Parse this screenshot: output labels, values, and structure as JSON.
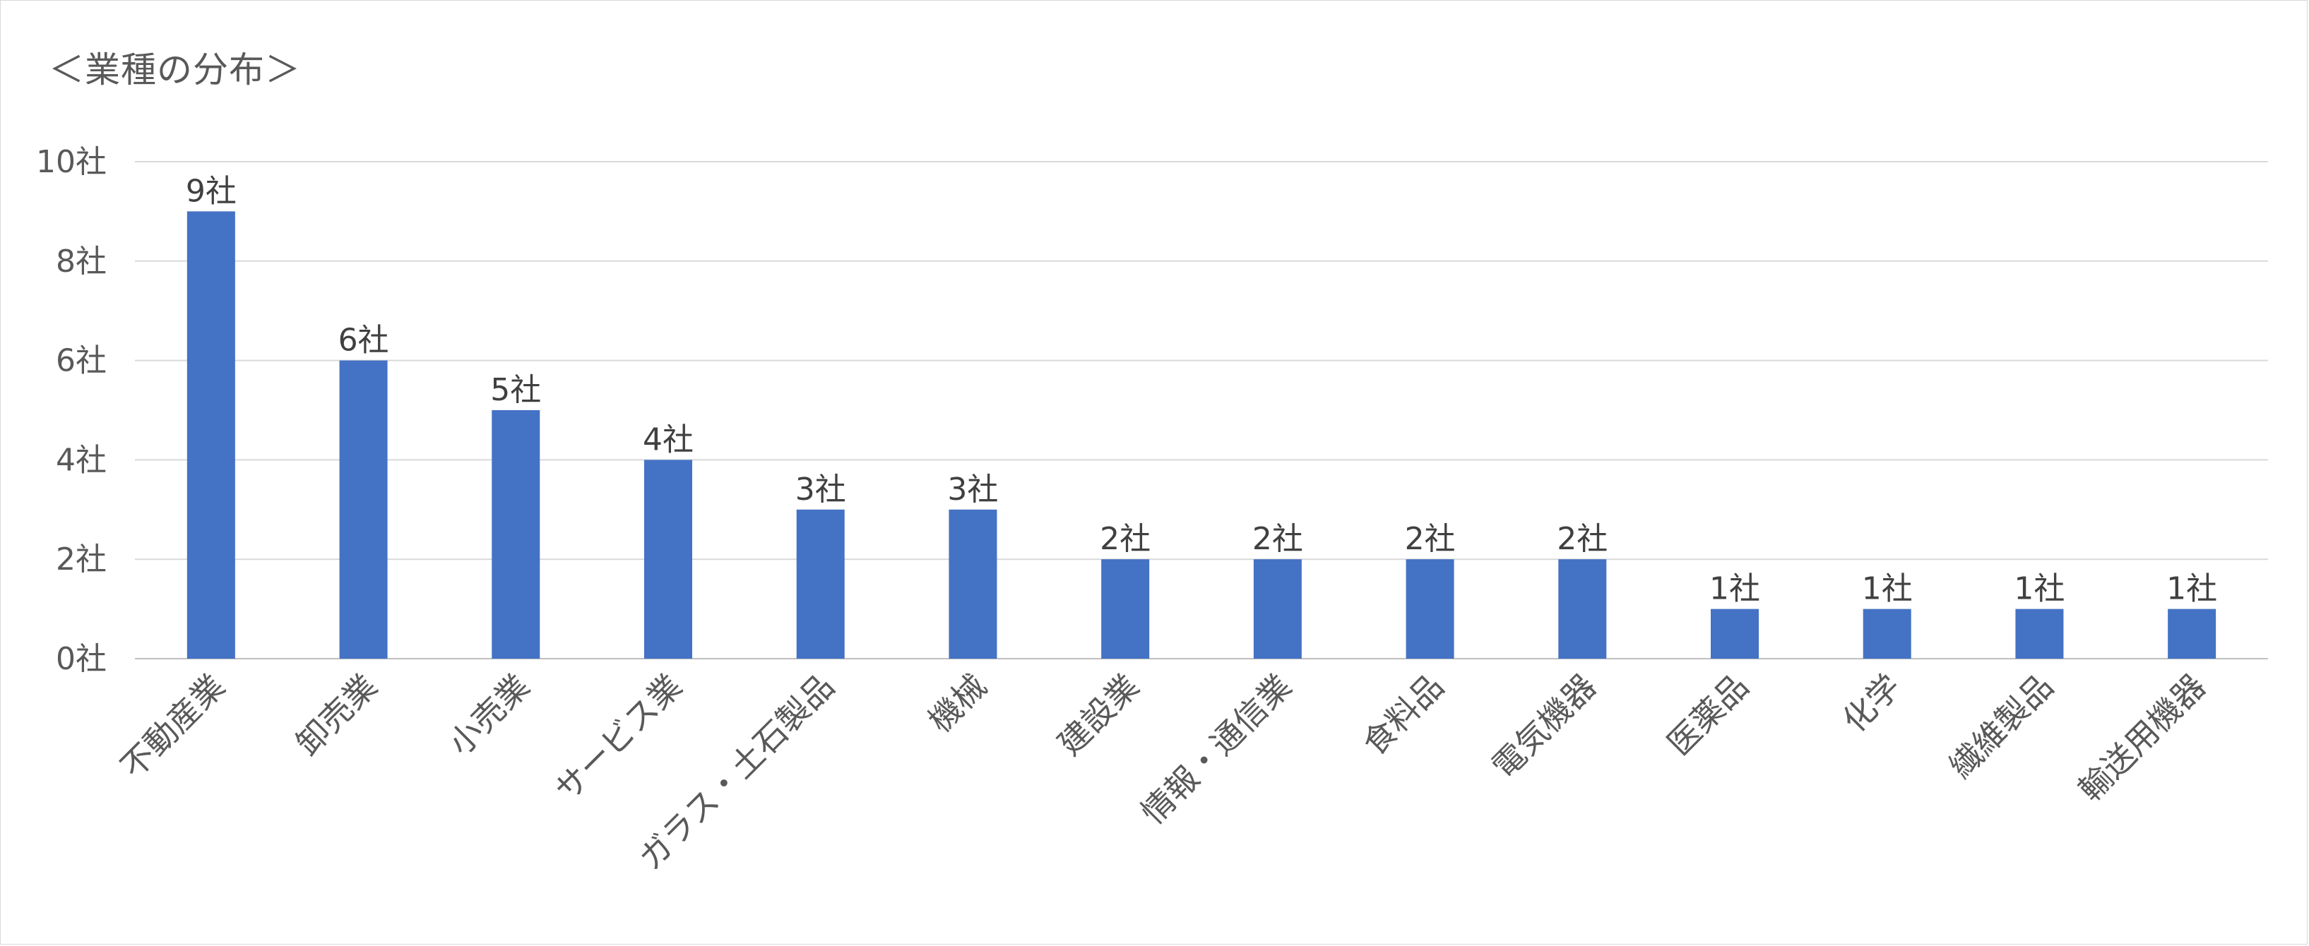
{
  "chart_data": {
    "type": "bar",
    "title": "＜業種の分布＞",
    "categories": [
      "不動産業",
      "卸売業",
      "小売業",
      "サービス業",
      "ガラス・土石製品",
      "機械",
      "建設業",
      "情報・通信業",
      "食料品",
      "電気機器",
      "医薬品",
      "化学",
      "繊維製品",
      "輸送用機器"
    ],
    "values": [
      9,
      6,
      5,
      4,
      3,
      3,
      2,
      2,
      2,
      2,
      1,
      1,
      1,
      1
    ],
    "data_labels": [
      "9社",
      "6社",
      "5社",
      "4社",
      "3社",
      "3社",
      "2社",
      "2社",
      "2社",
      "2社",
      "1社",
      "1社",
      "1社",
      "1社"
    ],
    "y_ticks": [
      0,
      2,
      4,
      6,
      8,
      10
    ],
    "y_tick_labels": [
      "0社",
      "2社",
      "4社",
      "6社",
      "8社",
      "10社"
    ],
    "ylim": [
      0,
      10
    ],
    "xlabel": "",
    "ylabel": "",
    "grid": true,
    "legend": "none",
    "colors": {
      "bar": "#4472c4",
      "grid": "#d9d9d9",
      "text": "#595959"
    }
  }
}
